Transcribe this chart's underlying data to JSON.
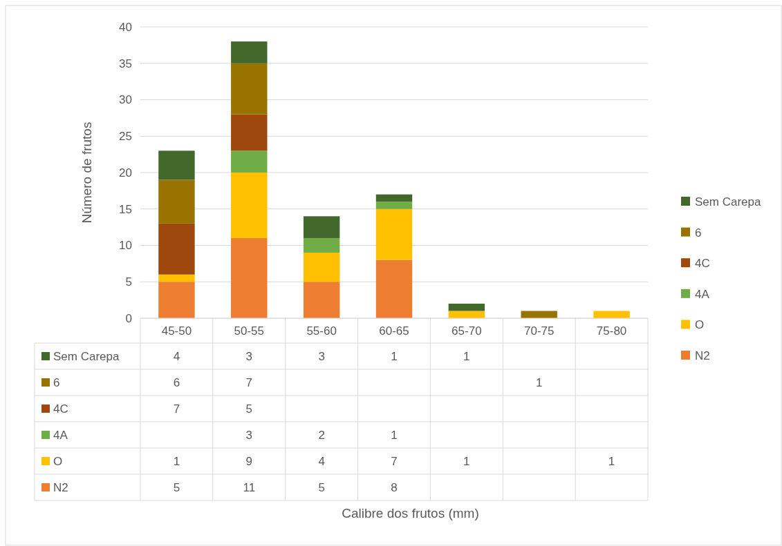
{
  "chart_data": {
    "type": "bar",
    "stacked": true,
    "annotations": [
      "Calibre dos frutos (mm)"
    ],
    "ylabel": "Número de frutos",
    "categories": [
      "45-50",
      "50-55",
      "55-60",
      "60-65",
      "65-70",
      "70-75",
      "75-80"
    ],
    "series": [
      {
        "name": "N2",
        "color": "#ed7d31",
        "values": [
          5,
          11,
          5,
          8,
          null,
          null,
          null
        ]
      },
      {
        "name": "O",
        "color": "#ffc000",
        "values": [
          1,
          9,
          4,
          7,
          1,
          null,
          1
        ]
      },
      {
        "name": "4A",
        "color": "#70ad47",
        "values": [
          null,
          3,
          2,
          1,
          null,
          null,
          null
        ]
      },
      {
        "name": "4C",
        "color": "#9e480e",
        "values": [
          7,
          5,
          null,
          null,
          null,
          null,
          null
        ]
      },
      {
        "name": "6",
        "color": "#997300",
        "values": [
          6,
          7,
          null,
          null,
          null,
          1,
          null
        ]
      },
      {
        "name": "Sem Carepa",
        "color": "#43682b",
        "values": [
          4,
          3,
          3,
          1,
          1,
          null,
          null
        ]
      }
    ],
    "ylim": [
      0,
      40
    ],
    "yticks": [
      0,
      5,
      10,
      15,
      20,
      25,
      30,
      35,
      40
    ],
    "grid": "y",
    "legend": "right",
    "data_labels": true
  }
}
